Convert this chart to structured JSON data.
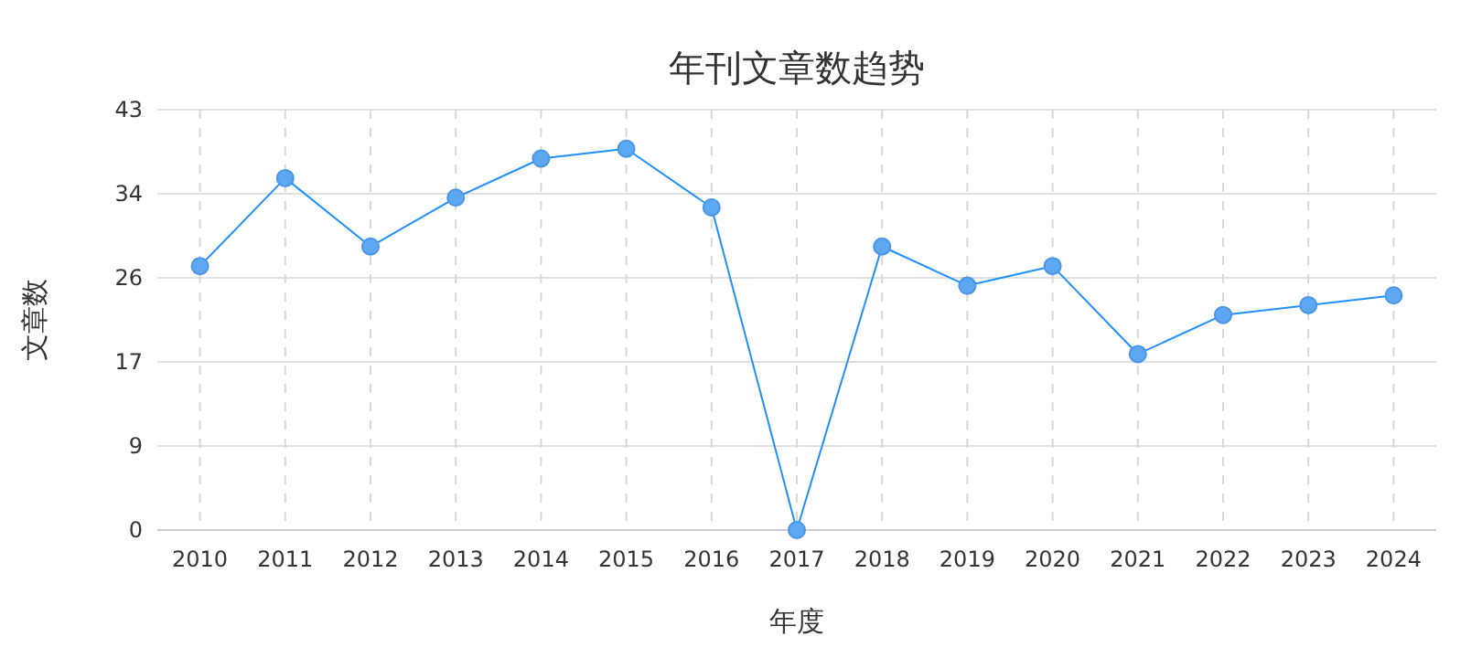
{
  "chart_data": {
    "type": "line",
    "title": "年刊文章数趋势",
    "xlabel": "年度",
    "ylabel": "文章数",
    "categories": [
      "2010",
      "2011",
      "2012",
      "2013",
      "2014",
      "2015",
      "2016",
      "2017",
      "2018",
      "2019",
      "2020",
      "2021",
      "2022",
      "2023",
      "2024"
    ],
    "series": [
      {
        "color": "#1e90ff",
        "values": [
          27,
          36,
          29,
          34,
          38,
          39,
          33,
          0,
          29,
          25,
          27,
          18,
          22,
          23,
          24
        ]
      }
    ],
    "ylim": [
      0,
      43
    ],
    "yticks": [
      0,
      {
        "value": 8.6,
        "label": "9"
      },
      {
        "value": 17.2,
        "label": "17"
      },
      {
        "value": 25.8,
        "label": "26"
      },
      {
        "value": 34.4,
        "label": "34"
      },
      43
    ],
    "grid": true,
    "marker": "circle",
    "line_style": "solid"
  }
}
